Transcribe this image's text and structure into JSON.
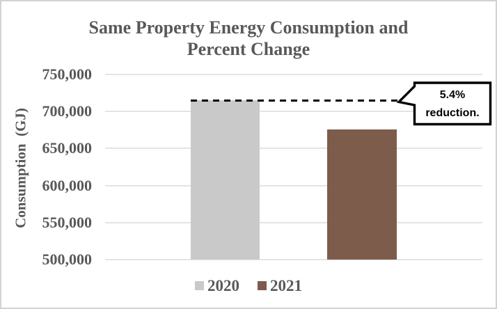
{
  "chart_data": {
    "type": "bar",
    "title": "Same Property Energy Consumption and Percent Change",
    "ylabel": "Consumption  (GJ)",
    "xlabel": "",
    "categories": [
      "2020",
      "2021"
    ],
    "series": [
      {
        "name": "2020",
        "value": 715000,
        "color": "#c9c9c9"
      },
      {
        "name": "2021",
        "value": 676000,
        "color": "#7d5c4c"
      }
    ],
    "ylim": [
      500000,
      750000
    ],
    "yticks": {
      "values": [
        750000,
        700000,
        650000,
        600000,
        550000,
        500000
      ],
      "labels": [
        "750,000",
        "700,000",
        "650,000",
        "600,000",
        "550,000",
        "500,000"
      ]
    },
    "grid": "horizontal",
    "legend_position": "bottom",
    "annotation": {
      "line1": "5.4%",
      "line2": "reduction.",
      "target_series": "2020",
      "style": "dashed-leader-to-callout"
    },
    "colors": {
      "text": "#595959",
      "gridline": "#e4e4e4",
      "callout_border": "#000000",
      "callout_fill": "#ffffff",
      "frame_border": "#d2d2d2"
    }
  }
}
